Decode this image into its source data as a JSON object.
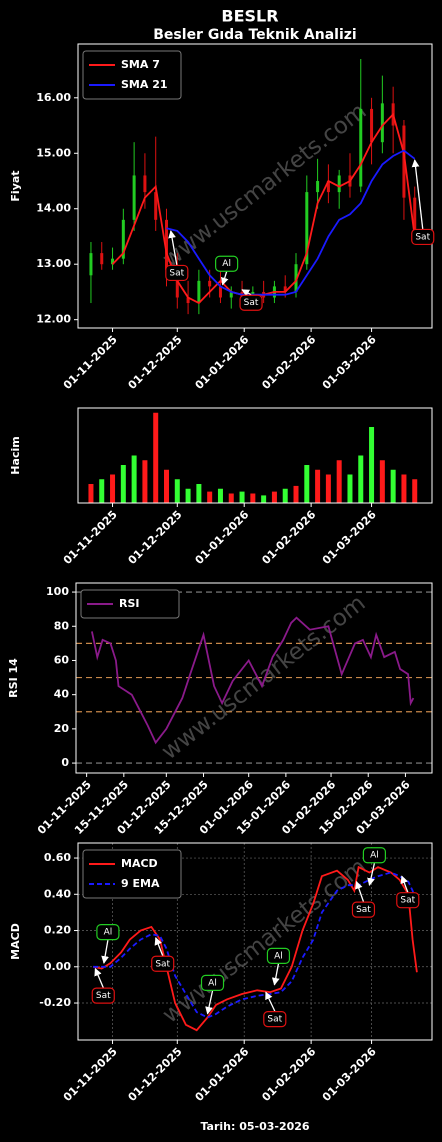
{
  "chart_data": [
    {
      "type": "candlestick",
      "title": "BESLR",
      "subtitle": "Besler Gıda Teknik Analizi",
      "ylabel": "Fiyat",
      "watermark": "www.uscmarkets.com",
      "x": [
        "2025-10-22",
        "2025-10-27",
        "2025-11-01",
        "2025-11-06",
        "2025-11-11",
        "2025-11-16",
        "2025-11-21",
        "2025-11-26",
        "2025-12-01",
        "2025-12-06",
        "2025-12-11",
        "2025-12-16",
        "2025-12-21",
        "2025-12-26",
        "2025-12-31",
        "2026-01-05",
        "2026-01-10",
        "2026-01-15",
        "2026-01-20",
        "2026-01-25",
        "2026-01-30",
        "2026-02-04",
        "2026-02-09",
        "2026-02-14",
        "2026-02-19",
        "2026-02-24",
        "2026-03-01",
        "2026-03-06",
        "2026-03-11",
        "2026-03-16",
        "2026-03-21"
      ],
      "open": [
        12.8,
        13.2,
        13.0,
        13.1,
        13.8,
        14.6,
        14.3,
        13.8,
        12.9,
        12.4,
        12.3,
        12.7,
        12.6,
        12.4,
        12.5,
        12.4,
        12.5,
        12.4,
        12.6,
        12.5,
        13.0,
        14.3,
        14.5,
        14.3,
        14.6,
        14.4,
        15.8,
        15.2,
        15.9,
        15.5,
        14.2
      ],
      "high": [
        13.4,
        13.4,
        13.3,
        14.0,
        15.2,
        15.0,
        15.3,
        14.0,
        13.2,
        12.7,
        12.9,
        12.9,
        12.9,
        12.6,
        12.7,
        12.6,
        12.7,
        12.7,
        12.8,
        13.2,
        14.6,
        14.9,
        14.8,
        14.7,
        15.0,
        16.7,
        16.0,
        16.4,
        16.2,
        15.6,
        14.4
      ],
      "low": [
        12.3,
        12.9,
        12.9,
        13.0,
        13.6,
        14.0,
        13.6,
        12.6,
        12.2,
        12.1,
        12.1,
        12.4,
        12.3,
        12.2,
        12.3,
        12.2,
        12.3,
        12.3,
        12.4,
        12.4,
        12.9,
        14.0,
        14.1,
        14.0,
        14.2,
        14.3,
        14.8,
        15.0,
        15.0,
        13.8,
        13.4
      ],
      "close": [
        13.2,
        13.0,
        13.1,
        13.8,
        14.6,
        14.3,
        13.8,
        12.9,
        12.4,
        12.3,
        12.7,
        12.6,
        12.4,
        12.5,
        12.4,
        12.5,
        12.4,
        12.6,
        12.5,
        13.0,
        14.3,
        14.5,
        14.3,
        14.6,
        14.4,
        15.8,
        15.2,
        15.9,
        15.5,
        14.2,
        13.6
      ],
      "up_color": "#22cc22",
      "down_color": "#dd1111",
      "series": [
        {
          "name": "SMA 7",
          "color": "#ff1a1a",
          "values": [
            null,
            null,
            13.0,
            13.2,
            13.7,
            14.2,
            14.4,
            13.2,
            12.7,
            12.4,
            12.3,
            12.5,
            12.7,
            12.5,
            12.45,
            12.4,
            12.45,
            12.5,
            12.5,
            12.7,
            13.2,
            14.1,
            14.5,
            14.4,
            14.5,
            14.8,
            15.2,
            15.5,
            15.7,
            15.0,
            13.5
          ]
        },
        {
          "name": "SMA 21",
          "color": "#1a1aff",
          "values": [
            null,
            null,
            null,
            null,
            null,
            null,
            null,
            13.65,
            13.6,
            13.4,
            13.1,
            12.8,
            12.6,
            12.5,
            12.45,
            12.45,
            12.45,
            12.45,
            12.45,
            12.5,
            12.8,
            13.1,
            13.5,
            13.8,
            13.9,
            14.1,
            14.5,
            14.8,
            14.95,
            15.05,
            14.9
          ]
        }
      ],
      "legend": "upper left",
      "xlim": [
        "2025-10-16",
        "2026-03-29"
      ],
      "xticks": [
        {
          "value": "2025-11-01",
          "label": "01-11-2025"
        },
        {
          "value": "2025-12-01",
          "label": "01-12-2025"
        },
        {
          "value": "2026-01-01",
          "label": "01-01-2026"
        },
        {
          "value": "2026-02-01",
          "label": "01-02-2026"
        },
        {
          "value": "2026-03-01",
          "label": "01-03-2026"
        }
      ],
      "ylim": [
        11.85,
        16.97
      ],
      "yticks": [
        {
          "value": 12,
          "label": "12.00"
        },
        {
          "value": 13,
          "label": "13.00"
        },
        {
          "value": 14,
          "label": "14.00"
        },
        {
          "value": 15,
          "label": "15.00"
        },
        {
          "value": 16,
          "label": "16.00"
        }
      ],
      "annotations": [
        {
          "text": "Sat",
          "x": "2025-11-28",
          "y": 13.6,
          "color": "#dd1111"
        },
        {
          "text": "Al",
          "x": "2025-12-22",
          "y": 12.63,
          "color": "#22cc22"
        },
        {
          "text": "Sat",
          "x": "2025-12-31",
          "y": 12.54,
          "color": "#dd1111"
        },
        {
          "text": "Sat",
          "x": "2026-03-21",
          "y": 14.88,
          "color": "#dd1111"
        }
      ]
    },
    {
      "type": "bar",
      "ylabel": "Hacim",
      "x": [
        "2025-10-22",
        "2025-10-27",
        "2025-11-01",
        "2025-11-06",
        "2025-11-11",
        "2025-11-16",
        "2025-11-21",
        "2025-11-26",
        "2025-12-01",
        "2025-12-06",
        "2025-12-11",
        "2025-12-16",
        "2025-12-21",
        "2025-12-26",
        "2025-12-31",
        "2026-01-05",
        "2026-01-10",
        "2026-01-15",
        "2026-01-20",
        "2026-01-25",
        "2026-01-30",
        "2026-02-04",
        "2026-02-09",
        "2026-02-14",
        "2026-02-19",
        "2026-02-24",
        "2026-03-01",
        "2026-03-06",
        "2026-03-11",
        "2026-03-16",
        "2026-03-21"
      ],
      "values": [
        20,
        25,
        30,
        40,
        50,
        45,
        95,
        35,
        25,
        15,
        20,
        12,
        15,
        10,
        12,
        10,
        8,
        12,
        15,
        18,
        40,
        35,
        30,
        45,
        30,
        50,
        80,
        45,
        35,
        30,
        25
      ],
      "colors": [
        "#ff1a1a",
        "#33ff33",
        "#ff1a1a",
        "#33ff33",
        "#33ff33",
        "#ff1a1a",
        "#ff1a1a",
        "#ff1a1a",
        "#33ff33",
        "#33ff33",
        "#33ff33",
        "#ff1a1a",
        "#33ff33",
        "#ff1a1a",
        "#33ff33",
        "#ff1a1a",
        "#33ff33",
        "#ff1a1a",
        "#33ff33",
        "#ff1a1a",
        "#33ff33",
        "#ff1a1a",
        "#ff1a1a",
        "#ff1a1a",
        "#33ff33",
        "#33ff33",
        "#33ff33",
        "#ff1a1a",
        "#33ff33",
        "#ff1a1a",
        "#ff1a1a"
      ],
      "xlim": [
        "2025-10-16",
        "2026-03-29"
      ],
      "xticks": [
        {
          "value": "2025-11-01",
          "label": "01-11-2025"
        },
        {
          "value": "2025-12-01",
          "label": "01-12-2025"
        },
        {
          "value": "2026-01-01",
          "label": "01-01-2026"
        },
        {
          "value": "2026-02-01",
          "label": "01-02-2026"
        },
        {
          "value": "2026-03-01",
          "label": "01-03-2026"
        }
      ],
      "ylim": [
        0,
        100
      ]
    },
    {
      "type": "line",
      "ylabel": "RSI 14",
      "watermark": "www.uscmarkets.com",
      "x": [
        "2025-11-03",
        "2025-11-05",
        "2025-11-07",
        "2025-11-10",
        "2025-11-12",
        "2025-11-13",
        "2025-11-16",
        "2025-11-18",
        "2025-11-22",
        "2025-11-24",
        "2025-11-27",
        "2025-12-01",
        "2025-12-07",
        "2025-12-10",
        "2025-12-15",
        "2025-12-19",
        "2025-12-22",
        "2025-12-26",
        "2026-01-01",
        "2026-01-06",
        "2026-01-10",
        "2026-01-14",
        "2026-01-17",
        "2026-01-19",
        "2026-01-24",
        "2026-01-31",
        "2026-02-05",
        "2026-02-10",
        "2026-02-13",
        "2026-02-16",
        "2026-02-18",
        "2026-02-21",
        "2026-02-25",
        "2026-02-27",
        "2026-03-02",
        "2026-03-03",
        "2026-03-04"
      ],
      "series": [
        {
          "name": "RSI",
          "color": "#8a1a8a",
          "values": [
            77,
            62,
            72,
            70,
            60,
            45,
            42,
            40,
            28,
            22,
            12,
            20,
            38,
            52,
            75,
            45,
            35,
            48,
            60,
            45,
            62,
            72,
            82,
            85,
            78,
            80,
            52,
            70,
            72,
            62,
            75,
            62,
            65,
            55,
            52,
            35,
            38
          ]
        }
      ],
      "legend": "upper left",
      "reference_lines": [
        {
          "value": 0,
          "color": "#888888"
        },
        {
          "value": 30,
          "color": "#c8884a"
        },
        {
          "value": 50,
          "color": "#c8884a"
        },
        {
          "value": 70,
          "color": "#c8884a"
        },
        {
          "value": 100,
          "color": "#888888"
        }
      ],
      "xlim": [
        "2025-10-28",
        "2026-03-11"
      ],
      "xticks": [
        {
          "value": "2025-11-01",
          "label": "01-11-2025"
        },
        {
          "value": "2025-11-15",
          "label": "15-11-2025"
        },
        {
          "value": "2025-12-01",
          "label": "01-12-2025"
        },
        {
          "value": "2025-12-15",
          "label": "15-12-2025"
        },
        {
          "value": "2026-01-01",
          "label": "01-01-2026"
        },
        {
          "value": "2026-01-15",
          "label": "15-01-2026"
        },
        {
          "value": "2026-02-01",
          "label": "01-02-2026"
        },
        {
          "value": "2026-02-15",
          "label": "15-02-2026"
        },
        {
          "value": "2026-03-01",
          "label": "01-03-2026"
        }
      ],
      "ylim": [
        -5.8,
        105.3
      ],
      "yticks": [
        0,
        20,
        40,
        60,
        80,
        100
      ]
    },
    {
      "type": "line",
      "ylabel": "MACD",
      "xlabel": "Tarih: 05-03-2026",
      "watermark": "www.uscmarkets.com",
      "grid": true,
      "x": [
        "2025-10-23",
        "2025-10-27",
        "2025-10-31",
        "2025-11-05",
        "2025-11-09",
        "2025-11-14",
        "2025-11-19",
        "2025-11-23",
        "2025-11-26",
        "2025-11-30",
        "2025-12-05",
        "2025-12-10",
        "2025-12-15",
        "2025-12-19",
        "2025-12-24",
        "2025-12-31",
        "2026-01-07",
        "2026-01-13",
        "2026-01-18",
        "2026-01-23",
        "2026-01-28",
        "2026-02-02",
        "2026-02-06",
        "2026-02-13",
        "2026-02-18",
        "2026-02-21",
        "2026-02-23",
        "2026-02-28",
        "2026-03-04",
        "2026-03-10",
        "2026-03-14",
        "2026-03-18",
        "2026-03-20",
        "2026-03-22"
      ],
      "series": [
        {
          "name": "MACD",
          "color": "#ff1a1a",
          "values": [
            0.0,
            -0.01,
            0.02,
            0.08,
            0.15,
            0.2,
            0.22,
            0.15,
            0.0,
            -0.2,
            -0.32,
            -0.35,
            -0.28,
            -0.21,
            -0.18,
            -0.15,
            -0.13,
            -0.14,
            -0.12,
            0.0,
            0.2,
            0.35,
            0.5,
            0.53,
            0.48,
            0.42,
            0.55,
            0.52,
            0.55,
            0.52,
            0.48,
            0.4,
            0.15,
            -0.03
          ]
        },
        {
          "name": "9 EMA",
          "color": "#1a1aff",
          "dashed": true,
          "values": [
            0.0,
            0.0,
            0.0,
            0.05,
            0.1,
            0.15,
            0.18,
            0.17,
            0.1,
            -0.05,
            -0.15,
            -0.25,
            -0.28,
            -0.26,
            -0.22,
            -0.18,
            -0.16,
            -0.15,
            -0.14,
            -0.08,
            0.05,
            0.15,
            0.3,
            0.42,
            0.45,
            0.45,
            0.45,
            0.48,
            0.5,
            0.52,
            0.5,
            0.47,
            0.42,
            0.35
          ]
        }
      ],
      "legend": "upper left",
      "xlim": [
        "2025-10-16",
        "2026-03-29"
      ],
      "xticks": [
        {
          "value": "2025-11-01",
          "label": "01-11-2025"
        },
        {
          "value": "2025-12-01",
          "label": "01-12-2025"
        },
        {
          "value": "2026-01-01",
          "label": "01-01-2026"
        },
        {
          "value": "2026-02-01",
          "label": "01-02-2026"
        },
        {
          "value": "2026-03-01",
          "label": "01-03-2026"
        }
      ],
      "ylim": [
        -0.404,
        0.683
      ],
      "yticks": [
        {
          "value": -0.2,
          "label": "-0.20"
        },
        {
          "value": 0,
          "label": "0.00"
        },
        {
          "value": 0.2,
          "label": "0.20"
        },
        {
          "value": 0.4,
          "label": "0.40"
        },
        {
          "value": 0.6,
          "label": "0.60"
        }
      ],
      "annotations": [
        {
          "text": "Sat",
          "x": "2025-10-24",
          "y": -0.01,
          "color": "#dd1111"
        },
        {
          "text": "Al",
          "x": "2025-10-28",
          "y": 0.02,
          "color": "#22cc22"
        },
        {
          "text": "Sat",
          "x": "2025-11-21",
          "y": 0.16,
          "color": "#dd1111"
        },
        {
          "text": "Al",
          "x": "2025-12-15",
          "y": -0.26,
          "color": "#22cc22"
        },
        {
          "text": "Sat",
          "x": "2026-01-11",
          "y": -0.14,
          "color": "#dd1111"
        },
        {
          "text": "Al",
          "x": "2026-01-15",
          "y": -0.1,
          "color": "#22cc22"
        },
        {
          "text": "Sat",
          "x": "2026-02-22",
          "y": 0.47,
          "color": "#dd1111"
        },
        {
          "text": "Al",
          "x": "2026-02-28",
          "y": 0.45,
          "color": "#22cc22"
        },
        {
          "text": "Sat",
          "x": "2026-03-15",
          "y": 0.5,
          "color": "#dd1111"
        }
      ]
    }
  ]
}
